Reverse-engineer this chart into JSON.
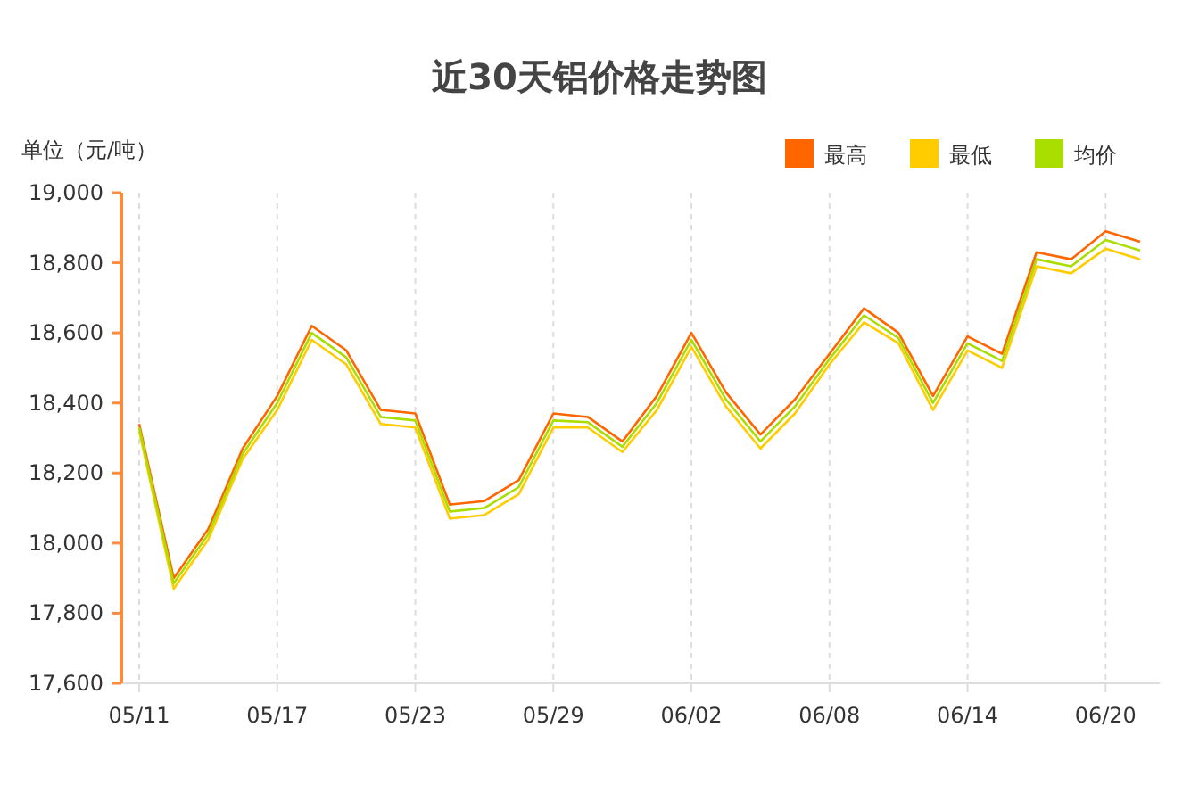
{
  "chart_data": {
    "type": "line",
    "title": "近30天铝价格走势图",
    "ylabel": "单位（元/吨）",
    "categories": [
      "05/11",
      null,
      null,
      null,
      "05/17",
      null,
      null,
      null,
      "05/23",
      null,
      null,
      null,
      "05/29",
      null,
      null,
      null,
      "06/02",
      null,
      null,
      null,
      "06/08",
      null,
      null,
      null,
      "06/14",
      null,
      null,
      null,
      "06/20",
      null
    ],
    "series": [
      {
        "name": "最高",
        "color": "#ff6600",
        "values": [
          18340,
          17900,
          18040,
          18270,
          18420,
          18620,
          18550,
          18380,
          18370,
          18110,
          18120,
          18180,
          18370,
          18360,
          18290,
          18420,
          18600,
          18430,
          18310,
          18410,
          18540,
          18670,
          18600,
          18420,
          18590,
          18540,
          18830,
          18810,
          18890,
          18860
        ]
      },
      {
        "name": "最低",
        "color": "#ffcc00",
        "values": [
          18320,
          17870,
          18010,
          18240,
          18380,
          18580,
          18510,
          18340,
          18330,
          18070,
          18080,
          18140,
          18330,
          18330,
          18260,
          18380,
          18560,
          18390,
          18270,
          18370,
          18510,
          18630,
          18570,
          18380,
          18550,
          18500,
          18790,
          18770,
          18840,
          18810
        ]
      },
      {
        "name": "均价",
        "color": "#aadd00",
        "values": [
          18330,
          17885,
          18025,
          18255,
          18400,
          18600,
          18530,
          18360,
          18350,
          18090,
          18100,
          18160,
          18350,
          18345,
          18275,
          18400,
          18580,
          18410,
          18290,
          18390,
          18525,
          18650,
          18585,
          18400,
          18570,
          18520,
          18810,
          18790,
          18865,
          18835
        ]
      }
    ],
    "ylim": [
      17600,
      19000
    ],
    "yticks": [
      {
        "value": 17600,
        "label": "17,600"
      },
      {
        "value": 17800,
        "label": "17,800"
      },
      {
        "value": 18000,
        "label": "18,000"
      },
      {
        "value": 18200,
        "label": "18,200"
      },
      {
        "value": 18400,
        "label": "18,400"
      },
      {
        "value": 18600,
        "label": "18,600"
      },
      {
        "value": 18800,
        "label": "18,800"
      },
      {
        "value": 19000,
        "label": "19,000"
      }
    ],
    "grid": "x",
    "legend": "top right",
    "marker": "none",
    "line_style": "solid"
  }
}
